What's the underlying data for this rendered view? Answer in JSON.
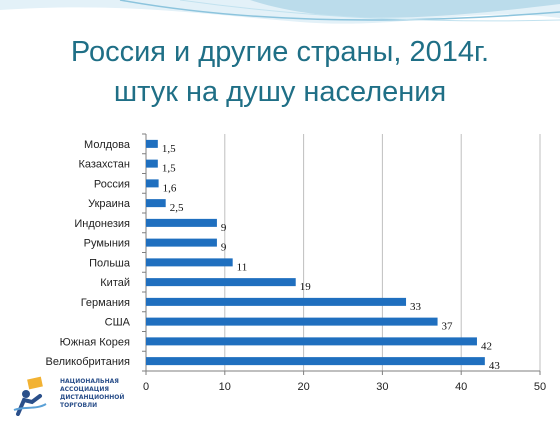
{
  "slide": {
    "title_line1": "Россия и другие страны, 2014г.",
    "title_line2": "штук на душу населения"
  },
  "logo": {
    "lines": [
      "НАЦИОНАЛЬНАЯ",
      "АССОЦИАЦИЯ",
      "ДИСТАНЦИОННОЙ",
      "ТОРГОВЛИ"
    ]
  },
  "colors": {
    "bar": "#1f6fbf",
    "title": "#1f6f86",
    "grid": "#bfbfbf",
    "wave": "#a9d3e6"
  },
  "chart_data": {
    "type": "bar",
    "orientation": "horizontal",
    "title": "",
    "xlabel": "",
    "ylabel": "",
    "categories": [
      "Молдова",
      "Казахстан",
      "Россия",
      "Украина",
      "Индонезия",
      "Румыния",
      "Польша",
      "Китай",
      "Германия",
      "США",
      "Южная Корея",
      "Великобритания"
    ],
    "values": [
      1.5,
      1.5,
      1.6,
      2.5,
      9,
      9,
      11,
      19,
      33,
      37,
      42,
      43
    ],
    "value_labels": [
      "1,5",
      "1,5",
      "1,6",
      "2,5",
      "9",
      "9",
      "11",
      "19",
      "33",
      "37",
      "42",
      "43"
    ],
    "xlim": [
      0,
      50
    ],
    "xticks": [
      "0",
      "10",
      "20",
      "30",
      "40",
      "50"
    ],
    "grid": true,
    "legend": "none"
  }
}
